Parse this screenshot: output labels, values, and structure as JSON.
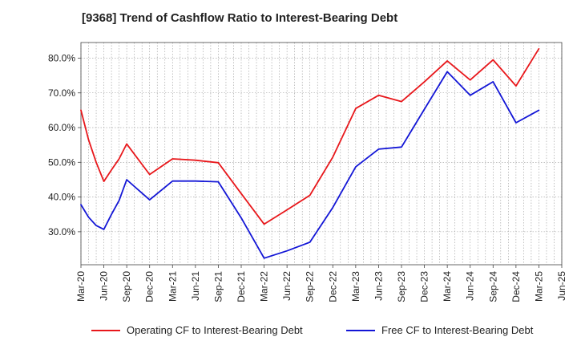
{
  "chart_data": {
    "type": "line",
    "title": "[9368]  Trend of Cashflow Ratio to Interest-Bearing Debt",
    "xlabel": "",
    "ylabel": "",
    "x_tick_labels": [
      "Mar-20",
      "Jun-20",
      "Sep-20",
      "Dec-20",
      "Mar-21",
      "Jun-21",
      "Sep-21",
      "Dec-21",
      "Mar-22",
      "Jun-22",
      "Sep-22",
      "Dec-22",
      "Mar-23",
      "Jun-23",
      "Sep-23",
      "Dec-23",
      "Mar-24",
      "Jun-24",
      "Sep-24",
      "Dec-24",
      "Mar-25",
      "Jun-25"
    ],
    "y_ticks": [
      30,
      40,
      50,
      60,
      70,
      80
    ],
    "y_tick_labels": [
      "30.0%",
      "40.0%",
      "50.0%",
      "60.0%",
      "70.0%",
      "80.0%"
    ],
    "ylim": [
      20.5,
      84.5
    ],
    "grid": true,
    "legend_position": "bottom",
    "series": [
      {
        "name": "Operating CF to Interest-Bearing Debt",
        "color": "#e8171b",
        "x": [
          "Mar-20",
          "Apr-20",
          "May-20",
          "Jun-20",
          "Jul-20",
          "Aug-20",
          "Sep-20",
          "Dec-20",
          "Mar-21",
          "Jun-21",
          "Sep-21",
          "Dec-21",
          "Mar-22",
          "Jun-22",
          "Sep-22",
          "Dec-22",
          "Mar-23",
          "Jun-23",
          "Sep-23",
          "Dec-23",
          "Mar-24",
          "Jun-24",
          "Sep-24",
          "Dec-24",
          "Mar-25"
        ],
        "values": [
          65.0,
          56.5,
          50.0,
          44.5,
          47.8,
          51.0,
          55.3,
          46.5,
          51.0,
          50.6,
          49.9,
          41.0,
          32.2,
          36.3,
          40.5,
          51.5,
          65.5,
          69.3,
          67.5,
          73.2,
          79.2,
          73.7,
          79.5,
          72.0,
          82.7
        ]
      },
      {
        "name": "Free CF to Interest-Bearing Debt",
        "color": "#1316d6",
        "x": [
          "Mar-20",
          "Apr-20",
          "May-20",
          "Jun-20",
          "Jul-20",
          "Aug-20",
          "Sep-20",
          "Dec-20",
          "Mar-21",
          "Jun-21",
          "Sep-21",
          "Dec-21",
          "Mar-22",
          "Jun-22",
          "Sep-22",
          "Dec-22",
          "Mar-23",
          "Jun-23",
          "Sep-23",
          "Dec-23",
          "Mar-24",
          "Jun-24",
          "Sep-24",
          "Dec-24",
          "Mar-25"
        ],
        "values": [
          37.8,
          34.2,
          31.8,
          30.7,
          35.0,
          39.0,
          45.0,
          39.2,
          44.6,
          44.6,
          44.4,
          34.0,
          22.4,
          24.5,
          27.0,
          37.0,
          48.7,
          53.8,
          54.4,
          65.3,
          76.1,
          69.3,
          73.2,
          61.4,
          65.0
        ]
      }
    ]
  }
}
